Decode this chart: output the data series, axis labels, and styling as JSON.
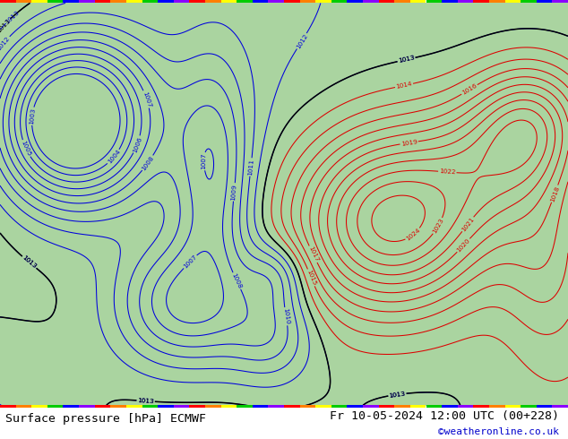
{
  "title_left": "Surface pressure [hPa] ECMWF",
  "title_right": "Fr 10-05-2024 12:00 UTC (00+228)",
  "credit": "©weatheronline.co.uk",
  "title_fontsize": 9.5,
  "credit_fontsize": 8,
  "bg_land_color": "#aad4a0",
  "bg_sea_color": "#c8dff0",
  "bottom_bg": "#ffffff",
  "label_color_left": "#000000",
  "label_color_right": "#000000",
  "credit_color": "#0000cc",
  "figsize": [
    6.34,
    4.9
  ],
  "dpi": 100,
  "rainbow_colors": [
    "#ff0000",
    "#ff7f00",
    "#ffff00",
    "#00cc00",
    "#0000ff",
    "#8b00ff",
    "#ff0000",
    "#ff7f00",
    "#ffff00",
    "#00cc00",
    "#0000ff",
    "#8b00ff",
    "#ff0000",
    "#ff7f00",
    "#ffff00",
    "#00cc00",
    "#0000ff",
    "#8b00ff",
    "#ff0000",
    "#ff7f00",
    "#ffff00",
    "#00cc00",
    "#0000ff",
    "#8b00ff",
    "#ff0000",
    "#ff7f00",
    "#ffff00",
    "#00cc00",
    "#0000ff",
    "#8b00ff",
    "#ff0000",
    "#ff7f00",
    "#ffff00",
    "#00cc00",
    "#0000ff",
    "#8b00ff"
  ]
}
